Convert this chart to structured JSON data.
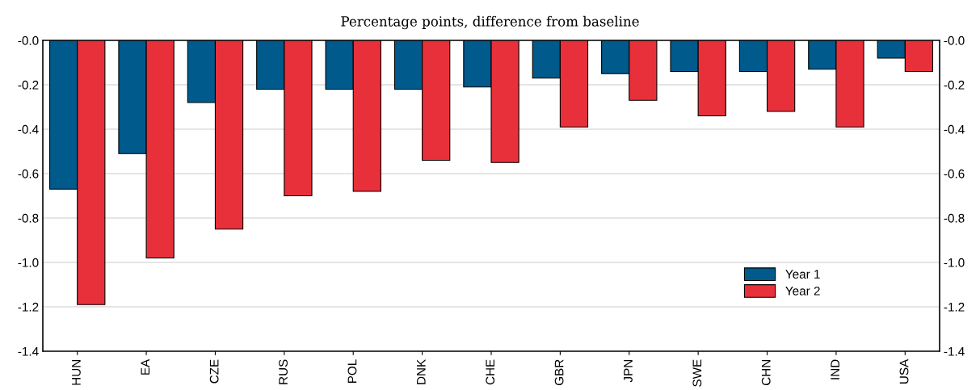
{
  "chart_data": {
    "type": "bar",
    "subtitle": "Percentage points, difference from baseline",
    "categories": [
      "HUN",
      "EA",
      "CZE",
      "RUS",
      "POL",
      "DNK",
      "CHE",
      "GBR",
      "JPN",
      "SWE",
      "CHN",
      "IND",
      "USA"
    ],
    "series": [
      {
        "name": "Year 1",
        "color": "#005a8c",
        "values": [
          -0.67,
          -0.51,
          -0.28,
          -0.22,
          -0.22,
          -0.22,
          -0.21,
          -0.17,
          -0.15,
          -0.14,
          -0.14,
          -0.13,
          -0.08
        ]
      },
      {
        "name": "Year 2",
        "color": "#e8303a",
        "values": [
          -1.19,
          -0.98,
          -0.85,
          -0.7,
          -0.68,
          -0.54,
          -0.55,
          -0.39,
          -0.27,
          -0.34,
          -0.32,
          -0.39,
          -0.14
        ]
      }
    ],
    "ylim": [
      -1.4,
      0
    ],
    "yticks": [
      {
        "value": 0,
        "label": "-0.0"
      },
      {
        "value": -0.2,
        "label": "-0.2"
      },
      {
        "value": -0.4,
        "label": "-0.4"
      },
      {
        "value": -0.6,
        "label": "-0.6"
      },
      {
        "value": -0.8,
        "label": "-0.8"
      },
      {
        "value": -1.0,
        "label": "-1.0"
      },
      {
        "value": -1.2,
        "label": "-1.2"
      },
      {
        "value": -1.4,
        "label": "-1.4"
      }
    ],
    "y2lim": [
      -1.4,
      0
    ],
    "y2ticks": [
      {
        "value": 0,
        "label": "-0.0"
      },
      {
        "value": -0.2,
        "label": "-0.2"
      },
      {
        "value": -0.4,
        "label": "-0.4"
      },
      {
        "value": -0.6,
        "label": "-0.6"
      },
      {
        "value": -0.8,
        "label": "-0.8"
      },
      {
        "value": -1.0,
        "label": "-1.0"
      },
      {
        "value": -1.2,
        "label": "-1.2"
      },
      {
        "value": -1.4,
        "label": "-1.4"
      }
    ],
    "grid": "y",
    "legend": "bottom right"
  }
}
